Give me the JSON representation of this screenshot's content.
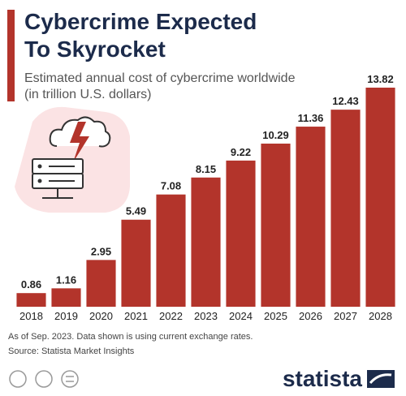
{
  "chart_data": {
    "type": "bar",
    "title": [
      "Cybercrime Expected",
      "To Skyrocket"
    ],
    "subtitle": [
      "Estimated annual cost of cybercrime worldwide",
      "(in trillion U.S. dollars)"
    ],
    "categories": [
      "2018",
      "2019",
      "2020",
      "2021",
      "2022",
      "2023",
      "2024",
      "2025",
      "2026",
      "2027",
      "2028"
    ],
    "values": [
      0.86,
      1.16,
      2.95,
      5.49,
      7.08,
      8.15,
      9.22,
      10.29,
      11.36,
      12.43,
      13.82
    ],
    "color": "#b3342b",
    "notes": [
      "As of Sep. 2023. Data shown is using current exchange rates.",
      "Source: Statista Market Insights"
    ],
    "brand": "statista"
  }
}
